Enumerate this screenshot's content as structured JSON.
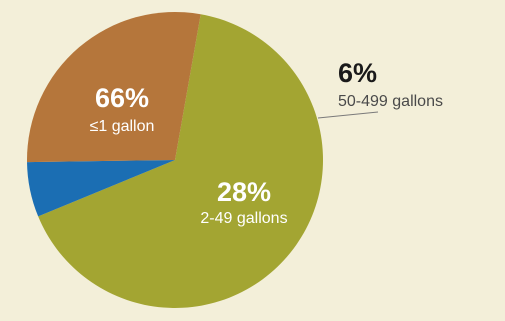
{
  "colors": {
    "background": "#f3efd9",
    "slice_small": "#a3a532",
    "slice_medium": "#b5763b",
    "slice_large": "#1b6eb3",
    "label_on_slice": "#ffffff",
    "label_outside_pct": "#1a1a1a",
    "label_outside_cat": "#4a4a4a",
    "leader_line": "#7a7a7a"
  },
  "chart_data": {
    "type": "pie",
    "slices": [
      {
        "label": "<1 gallon",
        "display_label": "≤1 gallon",
        "pct_text": "66%",
        "value": 66,
        "color_key": "slice_small"
      },
      {
        "label": "2-49 gallons",
        "display_label": "2-49 gallons",
        "pct_text": "28%",
        "value": 28,
        "color_key": "slice_medium"
      },
      {
        "label": "50-499 gallons",
        "display_label": "50-499 gallons",
        "pct_text": "6%",
        "value": 6,
        "color_key": "slice_large"
      }
    ]
  }
}
